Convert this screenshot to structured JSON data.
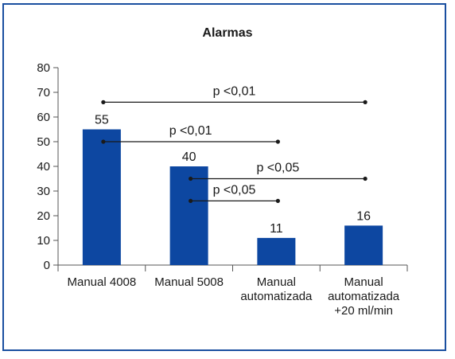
{
  "chart_data": {
    "type": "bar",
    "title": "Alarmas",
    "xlabel": "",
    "ylabel": "",
    "ylim": [
      0,
      80
    ],
    "yticks": [
      0,
      10,
      20,
      30,
      40,
      50,
      60,
      70,
      80
    ],
    "grid": false,
    "legend": "none",
    "bar_color": "#0d47a1",
    "categories": [
      [
        "Manual 4008"
      ],
      [
        "Manual 5008"
      ],
      [
        "Manual",
        "automatizada"
      ],
      [
        "Manual",
        "automatizada",
        "+20 ml/min"
      ]
    ],
    "values": [
      55,
      40,
      11,
      16
    ],
    "data_labels": [
      "55",
      "40",
      "11",
      "16"
    ],
    "comparisons": [
      {
        "label": "p <0,01",
        "from": 0,
        "to": 3,
        "y": 66
      },
      {
        "label": "p <0,01",
        "from": 0,
        "to": 2,
        "y": 50
      },
      {
        "label": "p <0,05",
        "from": 1,
        "to": 3,
        "y": 35
      },
      {
        "label": "p <0,05",
        "from": 1,
        "to": 2,
        "y": 26
      }
    ]
  }
}
